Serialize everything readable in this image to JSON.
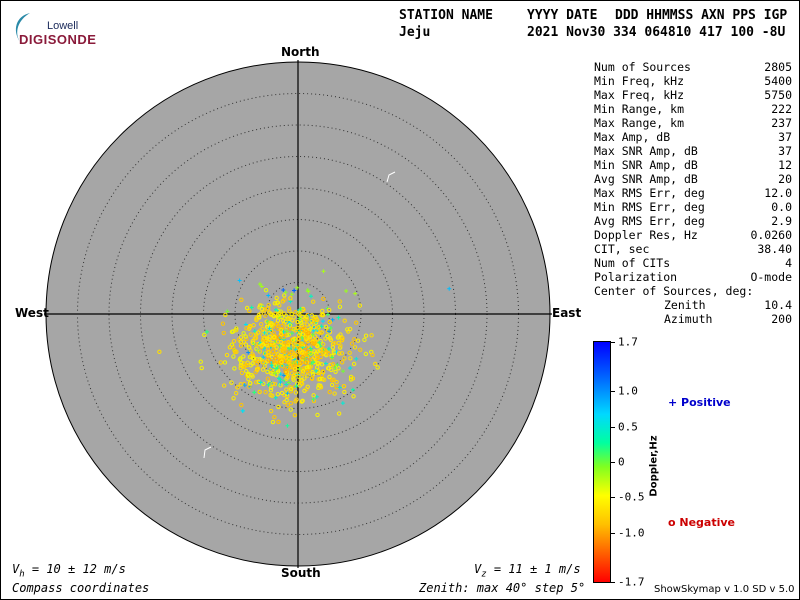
{
  "logo": {
    "top": "Lowell",
    "main": "DIGISONDE"
  },
  "header": {
    "cols": [
      "STATION NAME",
      "YYYY DATE",
      "DDD HHMMSS AXN PPS IGP"
    ],
    "station": "Jeju",
    "datetime": "2021 Nov30 334 064810 417 100 -8U"
  },
  "directions": {
    "north": "North",
    "south": "South",
    "east": "East",
    "west": "West"
  },
  "stats": [
    {
      "label": "Num of Sources",
      "value": "2805"
    },
    {
      "label": "Min Freq, kHz",
      "value": "5400"
    },
    {
      "label": "Max Freq, kHz",
      "value": "5750"
    },
    {
      "label": "Min Range, km",
      "value": "222"
    },
    {
      "label": "Max Range, km",
      "value": "237"
    },
    {
      "label": "Max Amp, dB",
      "value": "37"
    },
    {
      "label": "Max SNR Amp, dB",
      "value": "37"
    },
    {
      "label": "Min SNR Amp, dB",
      "value": "12"
    },
    {
      "label": "Avg SNR Amp, dB",
      "value": "20"
    },
    {
      "label": "Max RMS Err, deg",
      "value": "12.0"
    },
    {
      "label": "Min RMS Err, deg",
      "value": "0.0"
    },
    {
      "label": "Avg RMS Err, deg",
      "value": "2.9"
    },
    {
      "label": "Doppler Res, Hz",
      "value": "0.0260"
    },
    {
      "label": "CIT, sec",
      "value": "38.40"
    },
    {
      "label": "Num of CITs",
      "value": "4"
    },
    {
      "label": "Polarization",
      "value": "O-mode"
    },
    {
      "label": "Center of Sources, deg:",
      "value": ""
    },
    {
      "label": "Zenith",
      "value": "10.4"
    },
    {
      "label": "Azimuth",
      "value": "200"
    }
  ],
  "colorbar": {
    "label": "Doppler,Hz",
    "ticks": [
      "1.7",
      "1.0",
      "0.5",
      "0",
      "-0.5",
      "-1.0",
      "-1.7"
    ],
    "tick_values": [
      1.7,
      1.0,
      0.5,
      0,
      -0.5,
      -1.0,
      -1.7
    ]
  },
  "legend": {
    "positive": "+ Positive",
    "negative": "o Negative",
    "positive_color": "#0000cc",
    "negative_color": "#cc0000"
  },
  "footer": {
    "vh": "V  = 10 ± 12 m/s",
    "vh_sub": "h",
    "vz": "V  = 11 ± 1 m/s",
    "vz_sub": "z",
    "coords": "Compass coordinates",
    "zenith": "Zenith: max 40°  step 5°",
    "version": "ShowSkymap v 1.0   SD v 5.0"
  },
  "chart_data": {
    "type": "scatter",
    "projection": "polar skymap, zenith angle vs azimuth",
    "zenith_max_deg": 40,
    "zenith_step_deg": 5,
    "background": "#a6a6a6",
    "source_count": 2805,
    "center_of_sources": {
      "zenith_deg": 10.4,
      "azimuth_deg": 200
    },
    "doppler_range_hz": [
      -1.7,
      1.7
    ],
    "samples": [
      {
        "x": 5,
        "y": -10,
        "doppler": -0.5
      },
      {
        "x": -22,
        "y": -6,
        "doppler": -0.6
      },
      {
        "x": 24,
        "y": 4,
        "doppler": 0.9
      }
    ]
  }
}
